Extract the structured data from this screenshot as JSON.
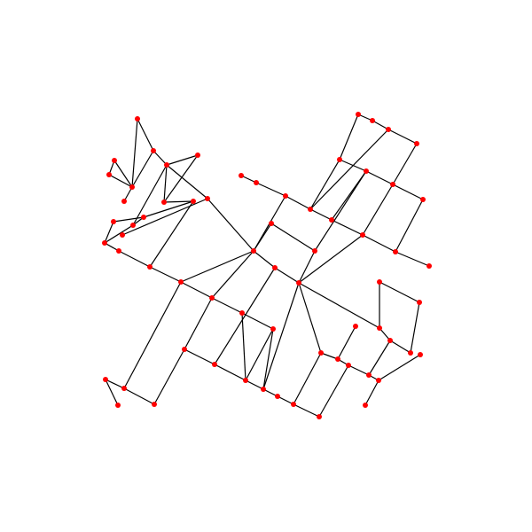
{
  "graph": {
    "node_color": "#ff0000",
    "edge_color": "#000000"
  }
}
